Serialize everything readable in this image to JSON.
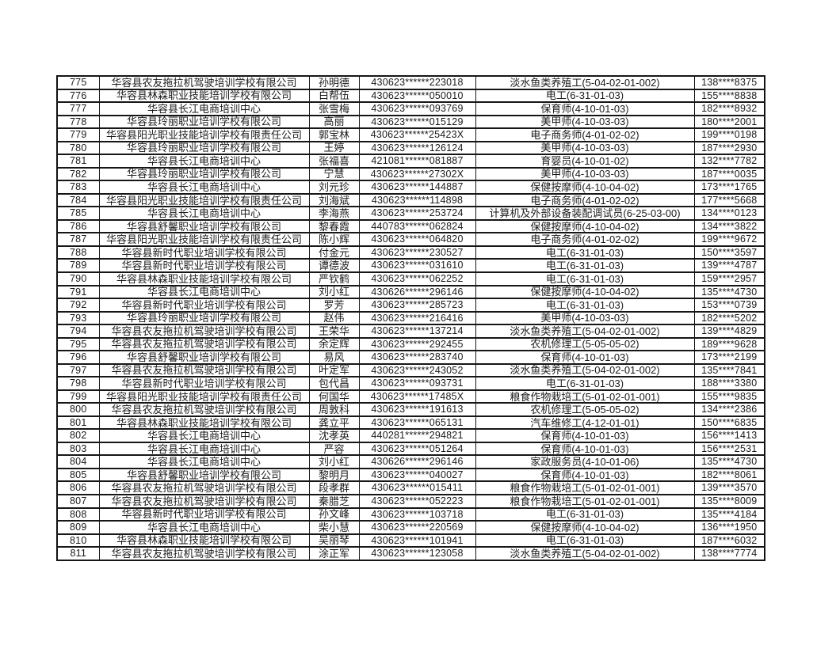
{
  "colors": {
    "background": "#ffffff",
    "border": "#111111",
    "text": "#1a1a1a"
  },
  "table": {
    "rows": [
      [
        "775",
        "华容县农友拖拉机驾驶培训学校有限公司",
        "孙明德",
        "430623******223018",
        "淡水鱼类养殖工(5-04-02-01-002)",
        "138****8375"
      ],
      [
        "776",
        "华容县林森职业技能培训学校有限公司",
        "白帮伍",
        "430623******050010",
        "电工(6-31-01-03)",
        "155****8838"
      ],
      [
        "777",
        "华容县长江电商培训中心",
        "张雪梅",
        "430623******093769",
        "保育师(4-10-01-03)",
        "182****8932"
      ],
      [
        "778",
        "华容县玲丽职业培训学校有限公司",
        "高丽",
        "430623******015129",
        "美甲师(4-10-03-03)",
        "180****2001"
      ],
      [
        "779",
        "华容县阳光职业技能培训学校有限责任公司",
        "郭宝林",
        "430623******25423X",
        "电子商务师(4-01-02-02)",
        "199****0198"
      ],
      [
        "780",
        "华容县玲丽职业培训学校有限公司",
        "王婷",
        "430623******126124",
        "美甲师(4-10-03-03)",
        "187****2930"
      ],
      [
        "781",
        "华容县长江电商培训中心",
        "张福喜",
        "421081******081887",
        "育婴员(4-10-01-02)",
        "132****7782"
      ],
      [
        "782",
        "华容县玲丽职业培训学校有限公司",
        "宁慧",
        "430623******27302X",
        "美甲师(4-10-03-03)",
        "187****0035"
      ],
      [
        "783",
        "华容县长江电商培训中心",
        "刘元珍",
        "430623******144887",
        "保健按摩师(4-10-04-02)",
        "173****1765"
      ],
      [
        "784",
        "华容县阳光职业技能培训学校有限责任公司",
        "刘海斌",
        "430623******114898",
        "电子商务师(4-01-02-02)",
        "177****5668"
      ],
      [
        "785",
        "华容县长江电商培训中心",
        "李海燕",
        "430623******253724",
        "计算机及外部设备装配调试员(6-25-03-00)",
        "134****0123"
      ],
      [
        "786",
        "华容县舒馨职业培训学校有限公司",
        "黎春霞",
        "440783******062824",
        "保健按摩师(4-10-04-02)",
        "134****3822"
      ],
      [
        "787",
        "华容县阳光职业技能培训学校有限责任公司",
        "陈小辉",
        "430623******064820",
        "电子商务师(4-01-02-02)",
        "199****9672"
      ],
      [
        "788",
        "华容县新时代职业培训学校有限公司",
        "付金元",
        "430623******230527",
        "电工(6-31-01-03)",
        "150****3597"
      ],
      [
        "789",
        "华容县新时代职业培训学校有限公司",
        "谭德波",
        "430623******031610",
        "电工(6-31-01-03)",
        "139****4787"
      ],
      [
        "790",
        "华容县林森职业技能培训学校有限公司",
        "严钦鹤",
        "430623******062252",
        "电工(6-31-01-03)",
        "159****2957"
      ],
      [
        "791",
        "华容县长江电商培训中心",
        "刘小红",
        "430626******296146",
        "保健按摩师(4-10-04-02)",
        "135****4730"
      ],
      [
        "792",
        "华容县新时代职业培训学校有限公司",
        "罗芳",
        "430623******285723",
        "电工(6-31-01-03)",
        "153****0739"
      ],
      [
        "793",
        "华容县玲丽职业培训学校有限公司",
        "赵伟",
        "430623******216416",
        "美甲师(4-10-03-03)",
        "182****5202"
      ],
      [
        "794",
        "华容县农友拖拉机驾驶培训学校有限公司",
        "王荣华",
        "430623******137214",
        "淡水鱼类养殖工(5-04-02-01-002)",
        "139****4829"
      ],
      [
        "795",
        "华容县农友拖拉机驾驶培训学校有限公司",
        "余定辉",
        "430623******292455",
        "农机修理工(5-05-05-02)",
        "189****9628"
      ],
      [
        "796",
        "华容县舒馨职业培训学校有限公司",
        "易风",
        "430623******283740",
        "保育师(4-10-01-03)",
        "173****2199"
      ],
      [
        "797",
        "华容县农友拖拉机驾驶培训学校有限公司",
        "叶定军",
        "430623******243052",
        "淡水鱼类养殖工(5-04-02-01-002)",
        "135****7841"
      ],
      [
        "798",
        "华容县新时代职业培训学校有限公司",
        "包代昌",
        "430623******093731",
        "电工(6-31-01-03)",
        "188****3380"
      ],
      [
        "799",
        "华容县阳光职业技能培训学校有限责任公司",
        "何国华",
        "430623******17485X",
        "粮食作物栽培工(5-01-02-01-001)",
        "155****9835"
      ],
      [
        "800",
        "华容县农友拖拉机驾驶培训学校有限公司",
        "周敦科",
        "430623******191613",
        "农机修理工(5-05-05-02)",
        "134****2386"
      ],
      [
        "801",
        "华容县林森职业技能培训学校有限公司",
        "龚立平",
        "430623******065131",
        "汽车维修工(4-12-01-01)",
        "150****6835"
      ],
      [
        "802",
        "华容县长江电商培训中心",
        "沈孝英",
        "440281******294821",
        "保育师(4-10-01-03)",
        "156****1413"
      ],
      [
        "803",
        "华容县长江电商培训中心",
        "严容",
        "430623******051264",
        "保育师(4-10-01-03)",
        "156****2531"
      ],
      [
        "804",
        "华容县长江电商培训中心",
        "刘小红",
        "430626******296146",
        "家政服务员(4-10-01-06)",
        "135****4730"
      ],
      [
        "805",
        "华容县舒馨职业培训学校有限公司",
        "黎明月",
        "430623******040027",
        "保育师(4-10-01-03)",
        "182****8061"
      ],
      [
        "806",
        "华容县农友拖拉机驾驶培训学校有限公司",
        "段孝群",
        "430623******015411",
        "粮食作物栽培工(5-01-02-01-001)",
        "139****3570"
      ],
      [
        "807",
        "华容县农友拖拉机驾驶培训学校有限公司",
        "秦腊芝",
        "430623******052223",
        "粮食作物栽培工(5-01-02-01-001)",
        "135****8009"
      ],
      [
        "808",
        "华容县新时代职业培训学校有限公司",
        "孙文峰",
        "430623******103718",
        "电工(6-31-01-03)",
        "135****4184"
      ],
      [
        "809",
        "华容县长江电商培训中心",
        "柴小慧",
        "430623******220569",
        "保健按摩师(4-10-04-02)",
        "136****1950"
      ],
      [
        "810",
        "华容县林森职业技能培训学校有限公司",
        "吴丽琴",
        "430623******101941",
        "电工(6-31-01-03)",
        "187****6032"
      ],
      [
        "811",
        "华容县农友拖拉机驾驶培训学校有限公司",
        "涂正军",
        "430623******123058",
        "淡水鱼类养殖工(5-04-02-01-002)",
        "138****7774"
      ]
    ]
  }
}
